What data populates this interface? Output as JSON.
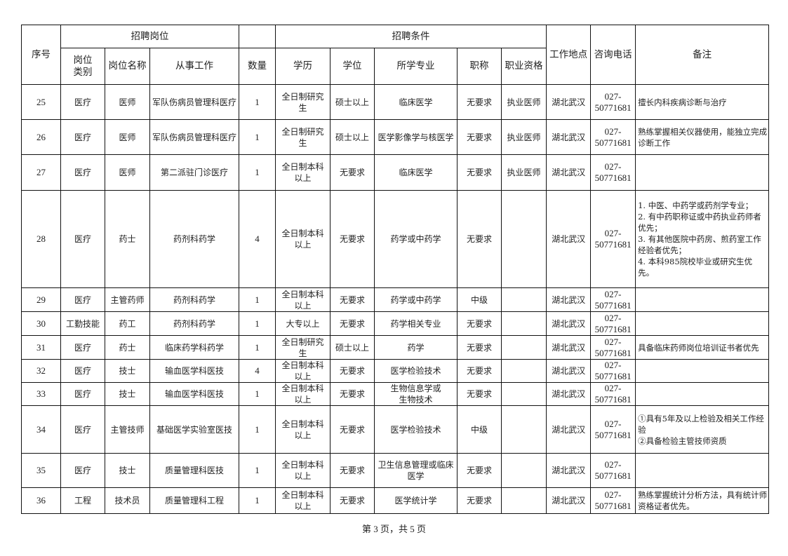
{
  "header": {
    "seq": "序号",
    "group_position": "招聘岗位",
    "group_conditions": "招聘条件",
    "category": "岗位类别",
    "position_name": "岗位名称",
    "work": "从事工作",
    "count": "数量",
    "education": "学历",
    "degree": "学位",
    "major": "所学专业",
    "title": "职称",
    "qualification": "职业资格",
    "location": "工作地点",
    "phone": "咨询电话",
    "remarks": "备注"
  },
  "rows": [
    {
      "seq": "25",
      "category": "医疗",
      "position_name": "医师",
      "work": "军队伤病员管理科医疗",
      "count": "1",
      "education": "全日制研究生",
      "degree": "硕士以上",
      "major": "临床医学",
      "title": "无要求",
      "qualification": "执业医师",
      "location": "湖北武汉",
      "phone": "027-50771681",
      "remarks": "擅长内科疾病诊断与治疗"
    },
    {
      "seq": "26",
      "category": "医疗",
      "position_name": "医师",
      "work": "军队伤病员管理科医疗",
      "count": "1",
      "education": "全日制研究生",
      "degree": "硕士以上",
      "major": "医学影像学与核医学",
      "title": "无要求",
      "qualification": "执业医师",
      "location": "湖北武汉",
      "phone": "027-50771681",
      "remarks": "熟练掌握相关仪器使用，能独立完成诊断工作"
    },
    {
      "seq": "27",
      "category": "医疗",
      "position_name": "医师",
      "work": "第二派驻门诊医疗",
      "count": "1",
      "education": "全日制本科以上",
      "degree": "无要求",
      "major": "临床医学",
      "title": "无要求",
      "qualification": "执业医师",
      "location": "湖北武汉",
      "phone": "027-50771681",
      "remarks": ""
    },
    {
      "seq": "28",
      "category": "医疗",
      "position_name": "药士",
      "work": "药剂科药学",
      "count": "4",
      "education": "全日制本科以上",
      "degree": "无要求",
      "major": "药学或中药学",
      "title": "无要求",
      "qualification": "",
      "location": "湖北武汉",
      "phone": "027-50771681",
      "remarks": "1. 中医、中药学或药剂学专业；\n2. 有中药职称证或中药执业药师者优先；\n3. 有其他医院中药房、煎药室工作经验者优先；\n4. 本科985院校毕业或研究生优先。"
    },
    {
      "seq": "29",
      "category": "医疗",
      "position_name": "主管药师",
      "work": "药剂科药学",
      "count": "1",
      "education": "全日制本科以上",
      "degree": "无要求",
      "major": "药学或中药学",
      "title": "中级",
      "qualification": "",
      "location": "湖北武汉",
      "phone": "027-50771681",
      "remarks": ""
    },
    {
      "seq": "30",
      "category": "工勤技能",
      "position_name": "药工",
      "work": "药剂科药学",
      "count": "1",
      "education": "大专以上",
      "degree": "无要求",
      "major": "药学相关专业",
      "title": "无要求",
      "qualification": "",
      "location": "湖北武汉",
      "phone": "027-50771681",
      "remarks": ""
    },
    {
      "seq": "31",
      "category": "医疗",
      "position_name": "药士",
      "work": "临床药学科药学",
      "count": "1",
      "education": "全日制研究生",
      "degree": "硕士以上",
      "major": "药学",
      "title": "无要求",
      "qualification": "",
      "location": "湖北武汉",
      "phone": "027-50771681",
      "remarks": "具备临床药师岗位培训证书者优先"
    },
    {
      "seq": "32",
      "category": "医疗",
      "position_name": "技士",
      "work": "输血医学科医技",
      "count": "4",
      "education": "全日制本科以上",
      "degree": "无要求",
      "major": "医学检验技术",
      "title": "无要求",
      "qualification": "",
      "location": "湖北武汉",
      "phone": "027-50771681",
      "remarks": ""
    },
    {
      "seq": "33",
      "category": "医疗",
      "position_name": "技士",
      "work": "输血医学科医技",
      "count": "1",
      "education": "全日制本科以上",
      "degree": "无要求",
      "major": "生物信息学或\n生物技术",
      "title": "无要求",
      "qualification": "",
      "location": "湖北武汉",
      "phone": "027-50771681",
      "remarks": ""
    },
    {
      "seq": "34",
      "category": "医疗",
      "position_name": "主管技师",
      "work": "基础医学实验室医技",
      "count": "1",
      "education": "全日制本科以上",
      "degree": "无要求",
      "major": "医学检验技术",
      "title": "中级",
      "qualification": "",
      "location": "湖北武汉",
      "phone": "027-50771681",
      "remarks": "①具有5年及以上检验及相关工作经验\n②具备检验主管技师资质"
    },
    {
      "seq": "35",
      "category": "医疗",
      "position_name": "技士",
      "work": "质量管理科医技",
      "count": "1",
      "education": "全日制本科以上",
      "degree": "无要求",
      "major": "卫生信息管理或临床医学",
      "title": "无要求",
      "qualification": "",
      "location": "湖北武汉",
      "phone": "027-50771681",
      "remarks": ""
    },
    {
      "seq": "36",
      "category": "工程",
      "position_name": "技术员",
      "work": "质量管理科工程",
      "count": "1",
      "education": "全日制本科以上",
      "degree": "无要求",
      "major": "医学统计学",
      "title": "无要求",
      "qualification": "",
      "location": "湖北武汉",
      "phone": "027-50771681",
      "remarks": "熟练掌握统计分析方法，具有统计师资格证者优先。"
    }
  ],
  "footer": {
    "page_text": "第 3 页，共 5 页"
  }
}
